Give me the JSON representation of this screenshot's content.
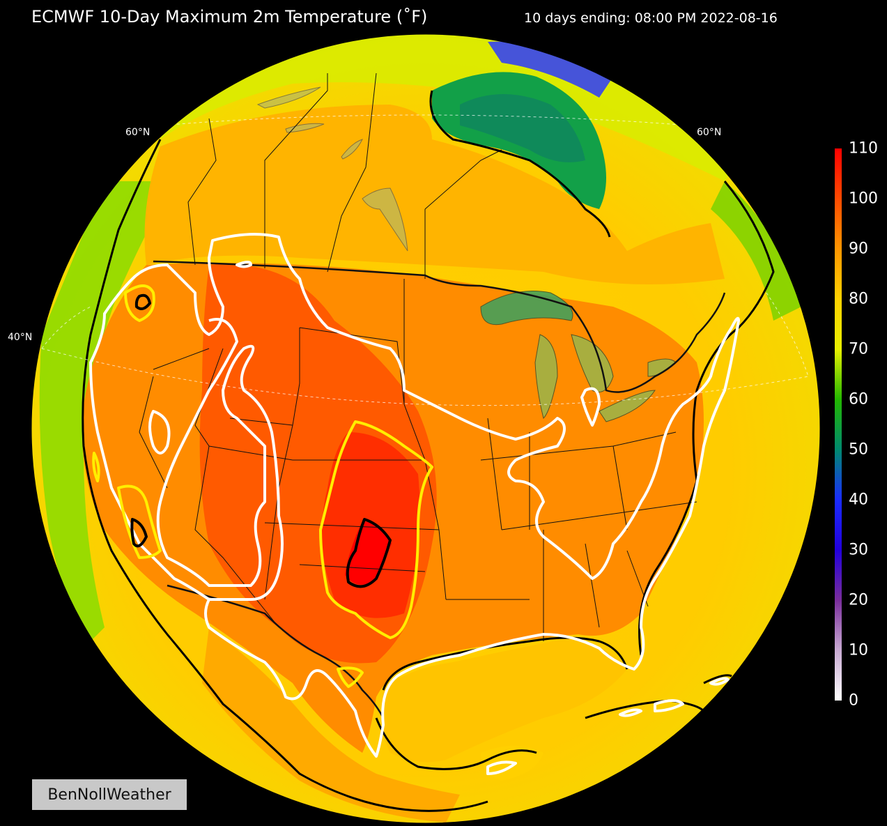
{
  "title": "ECMWF 10-Day Maximum 2m Temperature (˚F)",
  "subtitle": "10 days ending: 08:00 PM 2022-08-16",
  "lat_labels": {
    "left_60": "60°N",
    "right_60": "60°N",
    "left_40": "40°N"
  },
  "colorbar": {
    "ticks": [
      "110",
      "100",
      "90",
      "80",
      "70",
      "60",
      "50",
      "40",
      "30",
      "20",
      "10",
      "0"
    ],
    "colors": [
      "#ff0000",
      "#ff4a00",
      "#ff9600",
      "#ffd200",
      "#e8f000",
      "#22b800",
      "#008a6e",
      "#1a2cff",
      "#2200dd",
      "#7a2d9c",
      "#c8aad2",
      "#ffffff"
    ]
  },
  "watermark": "BenNollWeather"
}
